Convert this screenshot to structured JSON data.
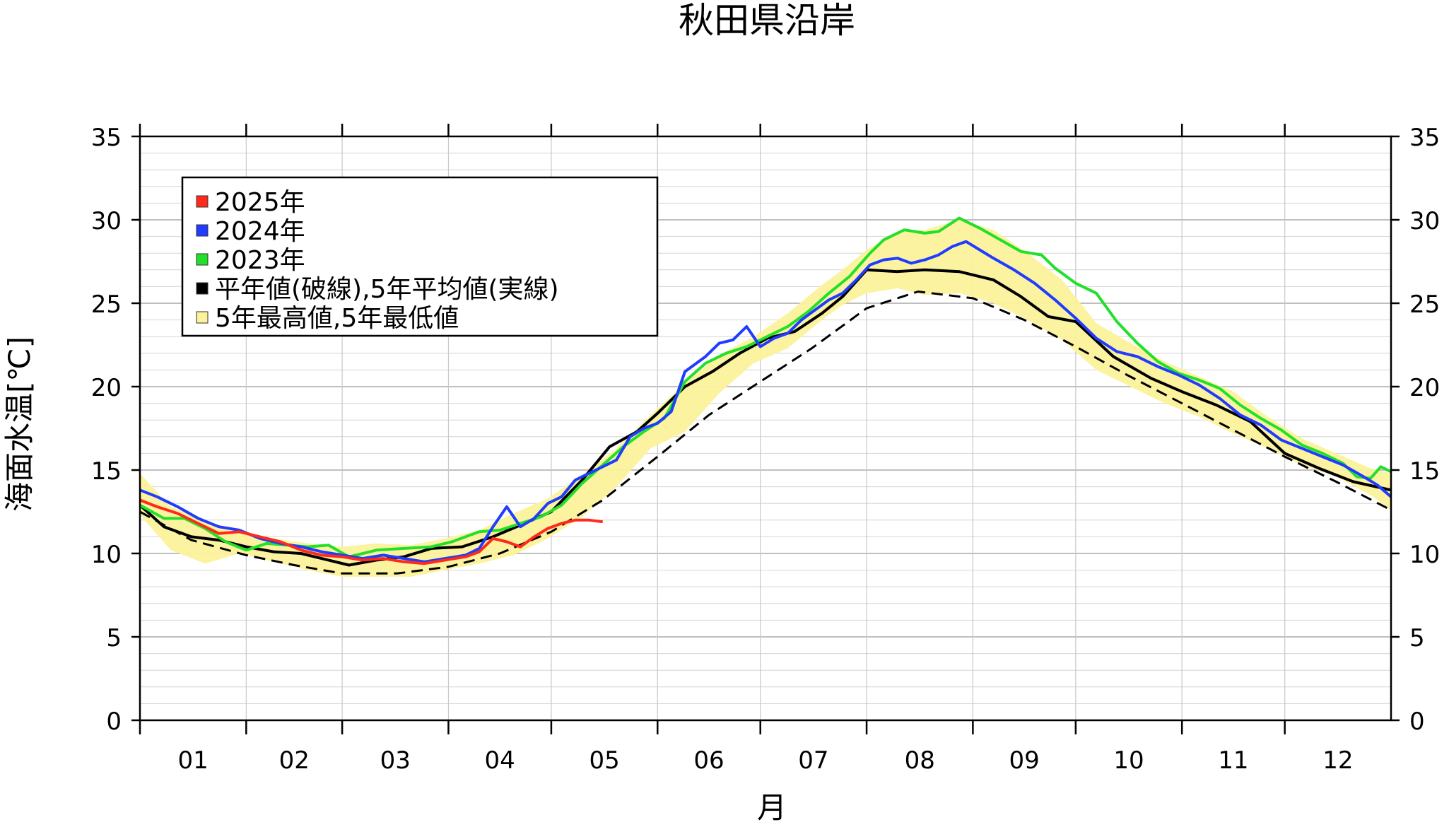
{
  "chart_data": {
    "type": "line",
    "title": "秋田県沿岸",
    "xlabel": "月",
    "ylabel": "海面水温[℃]",
    "xlim": [
      1,
      366
    ],
    "ylim": [
      0,
      35
    ],
    "yticks": [
      0,
      5,
      10,
      15,
      20,
      25,
      30,
      35
    ],
    "minor_grid_step": 1,
    "major_grid_step": 5,
    "month_labels": [
      "01",
      "02",
      "03",
      "04",
      "05",
      "06",
      "07",
      "08",
      "09",
      "10",
      "11",
      "12"
    ],
    "month_start_days": [
      1,
      32,
      60,
      91,
      121,
      152,
      182,
      213,
      244,
      274,
      305,
      335,
      366
    ],
    "legend_position": "top-left",
    "legend": [
      {
        "label": "2025年",
        "color": "#ff2a1a"
      },
      {
        "label": "2024年",
        "color": "#1f3cff"
      },
      {
        "label": "2023年",
        "color": "#22e02a"
      },
      {
        "label": "平年値(破線),5年平均値(実線)",
        "color": "#000000"
      },
      {
        "label": "5年最高値,5年最低値",
        "color": "#fbf29a"
      }
    ],
    "series": [
      {
        "name": "平年値(破線),5年平均値(実線)",
        "key": "normal",
        "color": "#000000",
        "dash": true,
        "x": [
          1,
          16,
          32,
          46,
          60,
          76,
          91,
          106,
          121,
          136,
          152,
          167,
          182,
          197,
          213,
          228,
          244,
          259,
          274,
          289,
          305,
          320,
          335,
          350,
          366
        ],
        "y": [
          12.5,
          10.8,
          9.9,
          9.3,
          8.8,
          8.8,
          9.2,
          10.0,
          11.3,
          13.2,
          15.8,
          18.3,
          20.3,
          22.3,
          24.7,
          25.7,
          25.3,
          24.0,
          22.4,
          20.7,
          19.0,
          17.4,
          15.8,
          14.3,
          12.6
        ]
      },
      {
        "name": "平年値(破線),5年平均値(実線)",
        "key": "avg5",
        "color": "#000000",
        "dash": false,
        "x": [
          1,
          8,
          16,
          24,
          32,
          40,
          48,
          56,
          62,
          70,
          78,
          86,
          95,
          104,
          112,
          121,
          130,
          138,
          146,
          152,
          160,
          168,
          176,
          184,
          192,
          200,
          206,
          213,
          222,
          230,
          240,
          250,
          258,
          266,
          274,
          285,
          296,
          305,
          315,
          325,
          335,
          345,
          355,
          366
        ],
        "y": [
          12.9,
          11.6,
          11.0,
          10.8,
          10.4,
          10.1,
          10.0,
          9.6,
          9.3,
          9.6,
          9.8,
          10.3,
          10.4,
          11.0,
          11.7,
          12.5,
          14.4,
          16.4,
          17.3,
          18.4,
          20.0,
          20.9,
          22.0,
          22.9,
          23.3,
          24.4,
          25.4,
          27.0,
          26.9,
          27.0,
          26.9,
          26.4,
          25.4,
          24.2,
          23.9,
          21.8,
          20.5,
          19.7,
          18.9,
          17.9,
          16.0,
          15.1,
          14.3,
          13.8
        ]
      },
      {
        "name": "2023年",
        "key": "y2023",
        "color": "#22e02a",
        "dash": false,
        "x": [
          1,
          8,
          14,
          20,
          26,
          32,
          38,
          44,
          50,
          56,
          62,
          70,
          78,
          86,
          92,
          100,
          106,
          112,
          118,
          124,
          130,
          136,
          142,
          148,
          154,
          160,
          166,
          172,
          178,
          184,
          190,
          196,
          202,
          208,
          214,
          218,
          224,
          230,
          234,
          240,
          246,
          252,
          258,
          264,
          268,
          274,
          280,
          286,
          292,
          298,
          304,
          310,
          316,
          322,
          328,
          334,
          340,
          346,
          352,
          356,
          360,
          363,
          366
        ],
        "y": [
          12.9,
          12.1,
          12.1,
          11.5,
          10.7,
          10.2,
          10.6,
          10.5,
          10.4,
          10.5,
          9.8,
          10.2,
          10.3,
          10.4,
          10.7,
          11.3,
          11.4,
          11.8,
          12.2,
          12.9,
          14.2,
          15.3,
          16.4,
          17.3,
          18.1,
          20.3,
          21.4,
          22.0,
          22.4,
          23.0,
          23.6,
          24.5,
          25.6,
          26.6,
          28.0,
          28.8,
          29.4,
          29.2,
          29.3,
          30.1,
          29.5,
          28.8,
          28.1,
          27.9,
          27.1,
          26.2,
          25.6,
          23.9,
          22.6,
          21.5,
          20.8,
          20.4,
          19.9,
          18.9,
          18.1,
          17.4,
          16.5,
          16.0,
          15.4,
          14.6,
          14.5,
          15.2,
          14.9
        ]
      },
      {
        "name": "2024年",
        "key": "y2024",
        "color": "#1f3cff",
        "dash": false,
        "x": [
          1,
          6,
          12,
          18,
          24,
          30,
          36,
          42,
          48,
          54,
          60,
          66,
          72,
          78,
          84,
          90,
          96,
          100,
          104,
          108,
          112,
          116,
          120,
          124,
          128,
          132,
          136,
          140,
          144,
          148,
          152,
          156,
          160,
          166,
          170,
          174,
          178,
          182,
          186,
          190,
          194,
          198,
          202,
          206,
          210,
          214,
          218,
          222,
          226,
          230,
          234,
          238,
          242,
          246,
          250,
          256,
          262,
          268,
          274,
          280,
          286,
          292,
          298,
          304,
          310,
          316,
          322,
          328,
          334,
          340,
          346,
          352,
          358,
          362,
          366
        ],
        "y": [
          13.8,
          13.4,
          12.8,
          12.1,
          11.6,
          11.4,
          10.9,
          10.6,
          10.4,
          10.1,
          9.9,
          9.7,
          9.9,
          9.7,
          9.5,
          9.7,
          9.9,
          10.3,
          11.6,
          12.8,
          11.6,
          12.1,
          13.0,
          13.4,
          14.4,
          14.8,
          15.2,
          15.6,
          17.0,
          17.5,
          17.8,
          18.5,
          20.9,
          21.8,
          22.6,
          22.8,
          23.6,
          22.4,
          22.9,
          23.2,
          24.0,
          24.6,
          25.2,
          25.6,
          26.4,
          27.3,
          27.6,
          27.7,
          27.4,
          27.6,
          27.9,
          28.4,
          28.7,
          28.2,
          27.7,
          27.0,
          26.2,
          25.2,
          24.1,
          22.9,
          22.1,
          21.8,
          21.2,
          20.7,
          20.1,
          19.3,
          18.3,
          17.7,
          16.8,
          16.3,
          15.8,
          15.3,
          14.6,
          14.1,
          13.4
        ]
      },
      {
        "name": "2025年",
        "key": "y2025",
        "color": "#ff2a1a",
        "dash": false,
        "x": [
          1,
          6,
          12,
          18,
          24,
          30,
          36,
          42,
          48,
          54,
          60,
          66,
          72,
          78,
          84,
          90,
          96,
          100,
          104,
          108,
          112,
          116,
          120,
          124,
          128,
          132,
          136
        ],
        "y": [
          13.2,
          12.8,
          12.4,
          11.8,
          11.2,
          11.3,
          11.0,
          10.7,
          10.2,
          9.9,
          9.8,
          9.6,
          9.7,
          9.5,
          9.4,
          9.6,
          9.8,
          10.1,
          10.9,
          10.7,
          10.4,
          11.0,
          11.5,
          11.8,
          12.0,
          12.0,
          11.9
        ]
      }
    ],
    "band": {
      "name": "5年最高値,5年最低値",
      "color": "#fbf29a",
      "x": [
        1,
        10,
        20,
        30,
        40,
        50,
        60,
        70,
        80,
        90,
        100,
        110,
        120,
        130,
        140,
        150,
        160,
        170,
        180,
        190,
        200,
        206,
        213,
        222,
        230,
        240,
        250,
        260,
        270,
        280,
        290,
        300,
        310,
        320,
        330,
        340,
        350,
        360,
        366
      ],
      "upper": [
        14.8,
        12.8,
        12.0,
        11.3,
        10.9,
        10.6,
        10.4,
        10.6,
        10.5,
        10.9,
        11.4,
        12.4,
        13.3,
        14.7,
        16.3,
        18.3,
        20.2,
        21.9,
        23.0,
        24.4,
        26.1,
        27.0,
        28.2,
        29.3,
        29.4,
        30.0,
        29.4,
        28.0,
        26.4,
        23.8,
        22.6,
        21.5,
        20.6,
        19.7,
        18.2,
        16.9,
        16.0,
        15.1,
        14.8
      ],
      "lower": [
        12.3,
        10.2,
        9.4,
        10.0,
        9.5,
        9.0,
        8.6,
        8.6,
        8.6,
        9.0,
        9.4,
        9.9,
        10.9,
        12.2,
        14.0,
        16.3,
        17.3,
        19.6,
        21.4,
        22.3,
        24.0,
        24.9,
        25.6,
        25.9,
        25.5,
        25.6,
        25.0,
        24.0,
        22.8,
        21.0,
        20.0,
        19.0,
        18.2,
        17.2,
        16.3,
        15.3,
        14.6,
        13.5,
        12.6
      ]
    }
  }
}
